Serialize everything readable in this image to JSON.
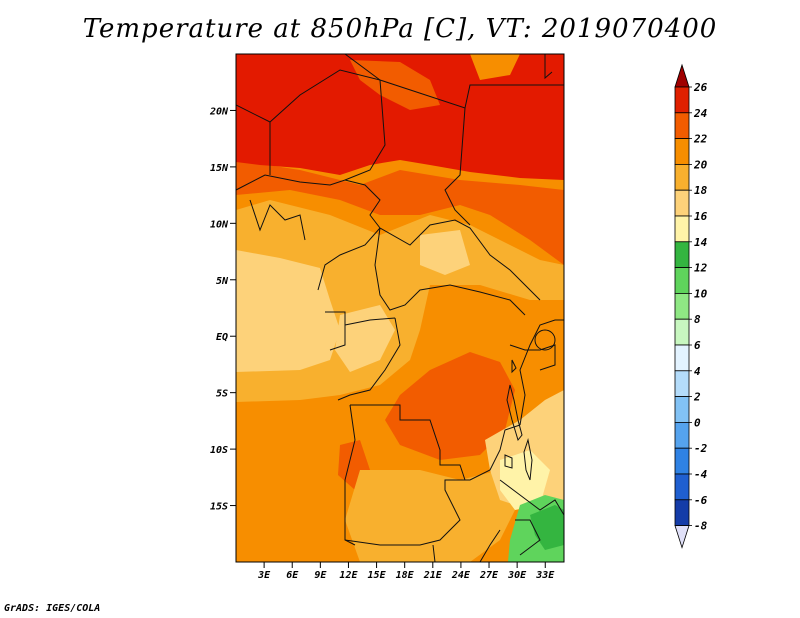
{
  "title": "Temperature at 850hPa [C], VT: 2019070400",
  "footer": "GrADS: IGES/COLA",
  "map": {
    "lon_range": [
      0,
      35
    ],
    "lat_range": [
      -20,
      25
    ],
    "lat_ticks": [
      {
        "value": 20,
        "label": "20N"
      },
      {
        "value": 15,
        "label": "15N"
      },
      {
        "value": 10,
        "label": "10N"
      },
      {
        "value": 5,
        "label": "5N"
      },
      {
        "value": 0,
        "label": "EQ"
      },
      {
        "value": -5,
        "label": "5S"
      },
      {
        "value": -10,
        "label": "10S"
      },
      {
        "value": -15,
        "label": "15S"
      }
    ],
    "lon_ticks": [
      {
        "value": 3,
        "label": "3E"
      },
      {
        "value": 6,
        "label": "6E"
      },
      {
        "value": 9,
        "label": "9E"
      },
      {
        "value": 12,
        "label": "12E"
      },
      {
        "value": 15,
        "label": "15E"
      },
      {
        "value": 18,
        "label": "18E"
      },
      {
        "value": 21,
        "label": "21E"
      },
      {
        "value": 24,
        "label": "24E"
      },
      {
        "value": 27,
        "label": "27E"
      },
      {
        "value": 30,
        "label": "30E"
      },
      {
        "value": 33,
        "label": "33E"
      }
    ]
  },
  "colorbar": {
    "levels": [
      {
        "label": "26",
        "color": "#a00000"
      },
      {
        "label": "24",
        "color": "#e02000"
      },
      {
        "label": "22",
        "color": "#f25c00"
      },
      {
        "label": "20",
        "color": "#f78e00"
      },
      {
        "label": "18",
        "color": "#f8b02e"
      },
      {
        "label": "16",
        "color": "#fdd27a"
      },
      {
        "label": "14",
        "color": "#fff3a8"
      },
      {
        "label": "12",
        "color": "#34b540"
      },
      {
        "label": "10",
        "color": "#5fd45c"
      },
      {
        "label": "8",
        "color": "#8fe884"
      },
      {
        "label": "6",
        "color": "#c8f7c0"
      },
      {
        "label": "4",
        "color": "#e3f3ff"
      },
      {
        "label": "2",
        "color": "#b4dcfa"
      },
      {
        "label": "0",
        "color": "#82c2f5"
      },
      {
        "label": "-2",
        "color": "#55a3ee"
      },
      {
        "label": "-4",
        "color": "#2f82e4"
      },
      {
        "label": "-6",
        "color": "#1f5fd0"
      },
      {
        "label": "-8",
        "color": "#143ca8"
      }
    ],
    "bottom_color": "#0a1e78",
    "under_color": "#e0e0f8"
  },
  "colors": {
    "hot": "#e31a00",
    "warm": "#f25c00",
    "orange": "#f78e00",
    "light_orange": "#f8b02e",
    "pale": "#fdd27a",
    "cream": "#fff3a8",
    "green": "#34b540",
    "light_green": "#5fd45c",
    "lake": "#f8b02e"
  }
}
